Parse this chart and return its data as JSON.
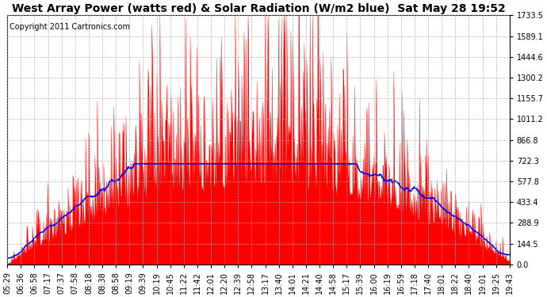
{
  "title": "West Array Power (watts red) & Solar Radiation (W/m2 blue)  Sat May 28 19:52",
  "copyright": "Copyright 2011 Cartronics.com",
  "ylabel_right_values": [
    1733.5,
    1589.1,
    1444.6,
    1300.2,
    1155.7,
    1011.2,
    866.8,
    722.3,
    577.8,
    433.4,
    288.9,
    144.5,
    0.0
  ],
  "ymax": 1733.5,
  "ymin": 0.0,
  "bg_color": "#ffffff",
  "plot_bg_color": "#ffffff",
  "grid_color": "#aaaaaa",
  "red_color": "#ff0000",
  "blue_color": "#0000ff",
  "x_tick_labels": [
    "05:29",
    "06:36",
    "06:58",
    "07:17",
    "07:37",
    "07:58",
    "08:18",
    "08:38",
    "08:58",
    "09:19",
    "09:39",
    "10:19",
    "10:45",
    "11:22",
    "11:42",
    "12:01",
    "12:20",
    "12:39",
    "12:58",
    "13:17",
    "13:40",
    "14:01",
    "14:21",
    "14:40",
    "14:58",
    "15:17",
    "15:39",
    "16:00",
    "16:19",
    "16:59",
    "17:18",
    "17:40",
    "18:01",
    "18:22",
    "18:40",
    "19:01",
    "19:25",
    "19:43"
  ],
  "title_fontsize": 10,
  "copyright_fontsize": 7,
  "tick_fontsize": 7
}
